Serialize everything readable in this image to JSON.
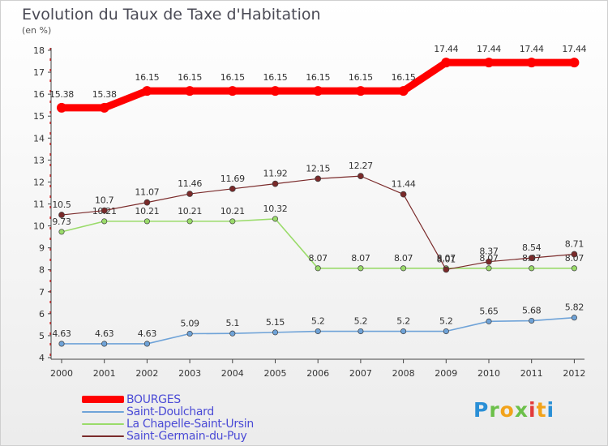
{
  "header": {
    "title": "Evolution du Taux de Taxe d'Habitation",
    "unit_label": "(en %)"
  },
  "logo": {
    "text": "Proxiti"
  },
  "chart_data": {
    "type": "line",
    "title": "Evolution du Taux de Taxe d'Habitation",
    "ylabel": "(en %)",
    "xlabel": "",
    "ylim": [
      4,
      18
    ],
    "yticks": [
      "4",
      "5",
      "6",
      "7",
      "8",
      "9",
      "10",
      "11",
      "12",
      "13",
      "14",
      "15",
      "16",
      "17",
      "18"
    ],
    "categories": [
      "2000",
      "2001",
      "2002",
      "2003",
      "2004",
      "2005",
      "2006",
      "2007",
      "2008",
      "2009",
      "2010",
      "2011",
      "2012"
    ],
    "grid": false,
    "legend_position": "bottom-left",
    "series": [
      {
        "name": "BOURGES",
        "color": "#ff0000",
        "values": [
          15.38,
          15.38,
          16.15,
          16.15,
          16.15,
          16.15,
          16.15,
          16.15,
          16.15,
          17.44,
          17.44,
          17.44,
          17.44
        ],
        "labels": [
          "15.38",
          "15.38",
          "16.15",
          "16.15",
          "16.15",
          "16.15",
          "16.15",
          "16.15",
          "16.15",
          "17.44",
          "17.44",
          "17.44",
          "17.44"
        ]
      },
      {
        "name": "Saint-Doulchard",
        "color": "#6fa3d8",
        "values": [
          4.63,
          4.63,
          4.63,
          5.09,
          5.1,
          5.15,
          5.2,
          5.2,
          5.2,
          5.2,
          5.65,
          5.68,
          5.82
        ],
        "labels": [
          "4.63",
          "4.63",
          "4.63",
          "5.09",
          "5.1",
          "5.15",
          "5.2",
          "5.2",
          "5.2",
          "5.2",
          "5.65",
          "5.68",
          "5.82"
        ]
      },
      {
        "name": "La Chapelle-Saint-Ursin",
        "color": "#9adb6a",
        "values": [
          9.73,
          10.21,
          10.21,
          10.21,
          10.21,
          10.32,
          8.07,
          8.07,
          8.07,
          8.07,
          8.07,
          8.07,
          8.07
        ],
        "labels": [
          "9.73",
          "10.21",
          "10.21",
          "10.21",
          "10.21",
          "10.32",
          "8.07",
          "8.07",
          "8.07",
          "8.07",
          "8.07",
          "8.07",
          "8.07"
        ]
      },
      {
        "name": "Saint-Germain-du-Puy",
        "color": "#7a2a2a",
        "values": [
          10.5,
          10.7,
          11.07,
          11.46,
          11.69,
          11.92,
          12.15,
          12.27,
          11.44,
          8.01,
          8.37,
          8.54,
          8.71
        ],
        "labels": [
          "10.5",
          "10.7",
          "11.07",
          "11.46",
          "11.69",
          "11.92",
          "12.15",
          "12.27",
          "11.44",
          "8.01",
          "8.37",
          "8.54",
          "8.71"
        ]
      }
    ]
  }
}
